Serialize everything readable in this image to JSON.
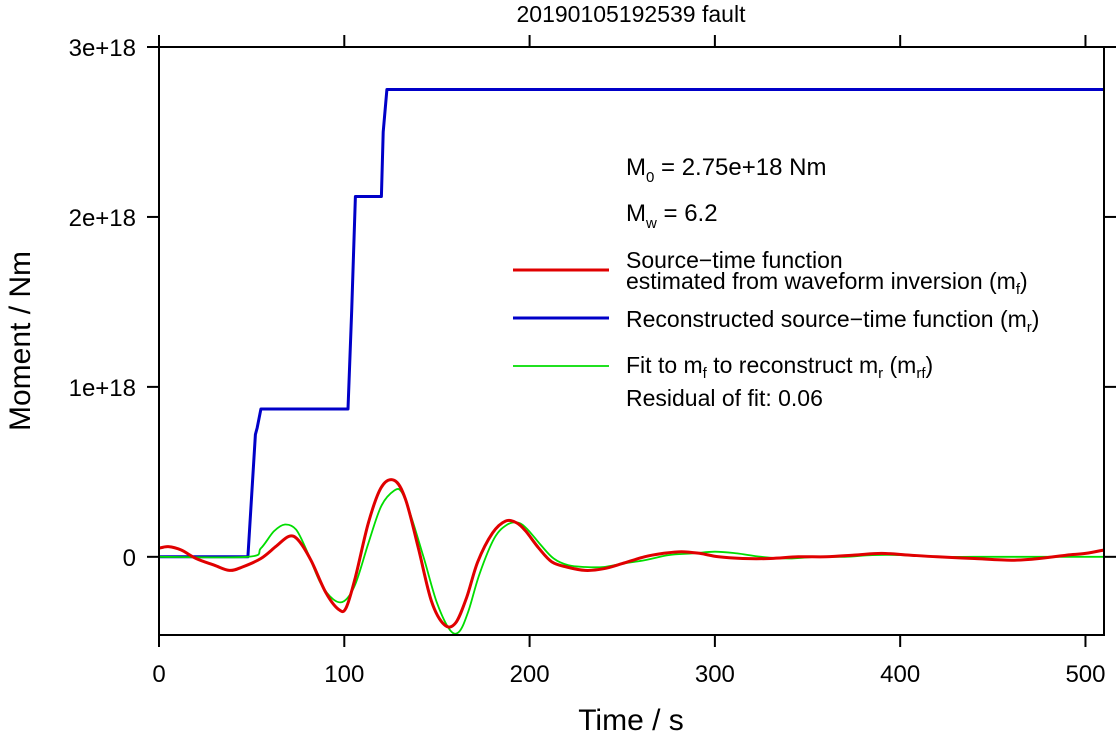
{
  "chart_data": {
    "type": "line",
    "title": "20190105192539 fault",
    "xlabel": "Time / s",
    "ylabel": "Moment / Nm",
    "xlim": [
      0,
      510
    ],
    "ylim": [
      -4.6e+17,
      3e+18
    ],
    "x_ticks": [
      {
        "value": 0,
        "label": "0"
      },
      {
        "value": 100,
        "label": "100"
      },
      {
        "value": 200,
        "label": "200"
      },
      {
        "value": 300,
        "label": "300"
      },
      {
        "value": 400,
        "label": "400"
      },
      {
        "value": 500,
        "label": "500"
      }
    ],
    "y_ticks": [
      {
        "value": 0,
        "label": "0"
      },
      {
        "value": 1e+18,
        "label": "1e+18"
      },
      {
        "value": 2e+18,
        "label": "2e+18"
      },
      {
        "value": 3e+18,
        "label": "3e+18"
      }
    ],
    "grid": false,
    "legend_position": "right",
    "annotations": {
      "m0": {
        "main": "M",
        "sub": "0",
        "rest": " = 2.75e+18 Nm"
      },
      "mw": {
        "main": "M",
        "sub": "w",
        "rest": " = 6.2"
      },
      "residual": "Residual of fit: 0.06"
    },
    "series": [
      {
        "name": "Source−time function estimated from waveform inversion (m_f)",
        "legend": {
          "line1": "Source−time function",
          "line2a": "estimated from waveform inversion (m",
          "line2sub": "f",
          "line2b": ")"
        },
        "color": "#e00000",
        "stroke": "thick",
        "x": [
          0,
          5,
          12,
          20,
          30,
          38,
          45,
          55,
          63,
          70,
          75,
          82,
          90,
          97,
          101,
          106,
          113,
          120,
          127,
          133,
          140,
          147,
          154,
          160,
          166,
          172,
          180,
          187,
          193,
          198,
          205,
          212,
          220,
          230,
          240,
          250,
          262,
          272,
          282,
          292,
          302,
          315,
          330,
          345,
          360,
          375,
          390,
          405,
          420,
          440,
          460,
          475,
          490,
          500,
          510
        ],
        "y": [
          5e+16,
          6e+16,
          4e+16,
          -1e+16,
          -5e+16,
          -8e+16,
          -6e+16,
          -1e+16,
          6e+16,
          1.2e+17,
          1e+17,
          -2e+16,
          -2.1e+17,
          -3.1e+17,
          -3e+17,
          -1.2e+17,
          2e+17,
          4.1e+17,
          4.5e+17,
          3.4e+17,
          5e+16,
          -2.6e+17,
          -4e+17,
          -3.9e+17,
          -2.4e+17,
          -3e+16,
          1.4e+17,
          2.1e+17,
          2e+17,
          1.5e+17,
          5e+16,
          -3e+16,
          -6e+16,
          -8e+16,
          -7e+16,
          -4e+16,
          0,
          2e+16,
          3e+16,
          2e+16,
          0,
          -1e+16,
          -1e+16,
          0,
          0,
          1e+16,
          2e+16,
          1e+16,
          0,
          -1e+16,
          -2e+16,
          -1e+16,
          1e+16,
          2e+16,
          4e+16
        ]
      },
      {
        "name": "Reconstructed source−time function (m_r)",
        "legend": {
          "line1a": "Reconstructed source−time function (m",
          "line1sub": "r",
          "line1b": ")"
        },
        "color": "#0000c8",
        "stroke": "thick",
        "x": [
          0,
          48,
          52,
          53,
          55,
          102,
          104,
          106,
          112,
          118,
          120,
          121,
          123,
          510
        ],
        "y": [
          0,
          0,
          7.2e+17,
          7.6e+17,
          8.7e+17,
          8.7e+17,
          1.45e+18,
          2.12e+18,
          2.12e+18,
          2.12e+18,
          2.12e+18,
          2.5e+18,
          2.75e+18,
          2.75e+18
        ]
      },
      {
        "name": "Fit to m_f to reconstruct m_r (m_rf)",
        "legend": {
          "line1a": "Fit to m",
          "line1sub1": "f",
          "line1mid": " to reconstruct m",
          "line1sub2": "r",
          "line1mid2": " (m",
          "line1sub3": "rf",
          "line1b": ")"
        },
        "color": "#00dd00",
        "stroke": "thin",
        "x": [
          0,
          48,
          55,
          62,
          68,
          74,
          80,
          87,
          94,
          100,
          106,
          113,
          120,
          127,
          131,
          136,
          143,
          150,
          157,
          162,
          167,
          173,
          181,
          188,
          194,
          199,
          206,
          213,
          221,
          230,
          240,
          250,
          262,
          275,
          288,
          300,
          312,
          325,
          340,
          355,
          370,
          385,
          400,
          420,
          440,
          460,
          480,
          500,
          510
        ],
        "y": [
          0,
          0,
          5e+16,
          1.5e+17,
          1.9e+17,
          1.6e+17,
          3e+16,
          -1.5e+17,
          -2.5e+17,
          -2.6e+17,
          -1.6e+17,
          8e+16,
          3e+17,
          3.9e+17,
          3.8e+17,
          2.4e+17,
          -1e+16,
          -2.7e+17,
          -4.3e+17,
          -4.4e+17,
          -3.2e+17,
          -1e+17,
          1.1e+17,
          1.9e+17,
          2e+17,
          1.6e+17,
          7e+16,
          -1e+16,
          -5e+16,
          -6e+16,
          -6e+16,
          -4e+16,
          -2e+16,
          1e+16,
          2e+16,
          3e+16,
          2e+16,
          0,
          -1e+16,
          0,
          0,
          1e+16,
          1e+16,
          0,
          0,
          0,
          0,
          0,
          0
        ]
      }
    ]
  }
}
